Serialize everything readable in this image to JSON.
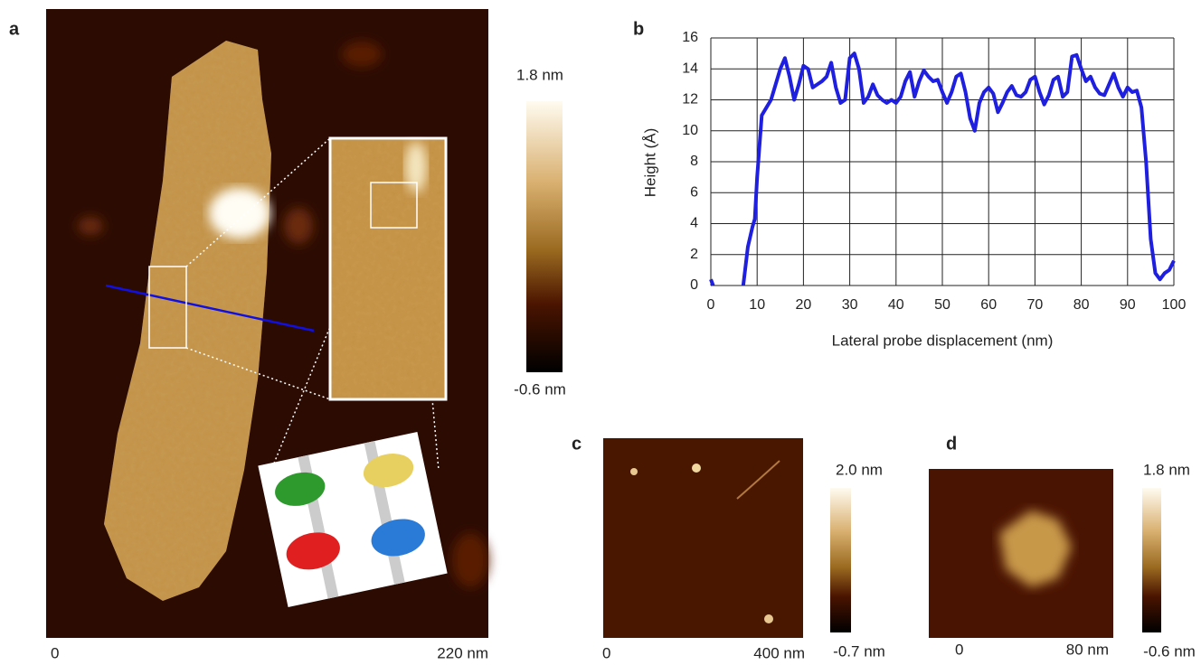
{
  "panels": {
    "a": {
      "label": "a",
      "scale_start": "0",
      "scale_end": "220 nm",
      "colorbar_max": "1.8 nm",
      "colorbar_min": "-0.6 nm"
    },
    "b": {
      "label": "b"
    },
    "c": {
      "label": "c",
      "scale_start": "0",
      "scale_end": "400 nm",
      "colorbar_max": "2.0 nm",
      "colorbar_min": "-0.7 nm"
    },
    "d": {
      "label": "d",
      "scale_start": "0",
      "scale_end": "80 nm",
      "colorbar_max": "1.8 nm",
      "colorbar_min": "-0.6 nm"
    }
  },
  "chart_data": {
    "type": "line",
    "x_label": "Lateral probe displacement (nm)",
    "y_label": "Height (Å)",
    "xlim": [
      0,
      100
    ],
    "xticks": [
      0,
      10,
      20,
      30,
      40,
      50,
      60,
      70,
      80,
      90,
      100
    ],
    "ylim": [
      0,
      16
    ],
    "yticks": [
      0,
      2,
      4,
      6,
      8,
      10,
      12,
      14,
      16
    ],
    "grid": true,
    "series": [
      {
        "color": "#1f1fe0",
        "x": [
          0,
          0.5,
          4,
          7,
          8,
          9,
          9.5,
          10,
          11,
          12,
          13,
          14,
          15,
          16,
          17,
          18,
          19,
          20,
          21,
          22,
          23,
          24,
          25,
          26,
          27,
          28,
          29,
          30,
          31,
          32,
          33,
          34,
          35,
          36,
          37,
          38,
          39,
          40,
          41,
          42,
          43,
          44,
          45,
          46,
          47,
          48,
          49,
          50,
          51,
          52,
          53,
          54,
          55,
          56,
          57,
          58,
          59,
          60,
          61,
          62,
          63,
          64,
          65,
          66,
          67,
          68,
          69,
          70,
          71,
          72,
          73,
          74,
          75,
          76,
          77,
          78,
          79,
          80,
          81,
          82,
          83,
          84,
          85,
          86,
          87,
          88,
          89,
          90,
          91,
          92,
          93,
          94,
          95,
          96,
          97,
          98,
          99,
          100
        ],
        "values": [
          0.4,
          0,
          null,
          0,
          2.5,
          3.8,
          4.3,
          7,
          11,
          11.5,
          12,
          13,
          14,
          14.7,
          13.5,
          12,
          13,
          14.2,
          14,
          12.8,
          13,
          13.2,
          13.5,
          14.4,
          12.8,
          11.8,
          12,
          14.7,
          15,
          14,
          11.8,
          12.2,
          13,
          12.3,
          12,
          11.8,
          12,
          11.8,
          12.2,
          13.2,
          13.8,
          12.2,
          13.2,
          13.9,
          13.5,
          13.2,
          13.3,
          12.5,
          11.8,
          12.5,
          13.5,
          13.7,
          12.5,
          10.8,
          10,
          11.8,
          12.5,
          12.8,
          12.4,
          11.2,
          11.8,
          12.5,
          12.9,
          12.3,
          12.2,
          12.5,
          13.3,
          13.5,
          12.5,
          11.7,
          12.3,
          13.3,
          13.5,
          12.2,
          12.5,
          14.8,
          14.9,
          14,
          13.2,
          13.5,
          12.8,
          12.4,
          12.3,
          13,
          13.7,
          12.8,
          12.2,
          12.8,
          12.5,
          12.6,
          11.5,
          8,
          3,
          0.8,
          0.4,
          0.8,
          1,
          1.6
        ]
      }
    ]
  }
}
